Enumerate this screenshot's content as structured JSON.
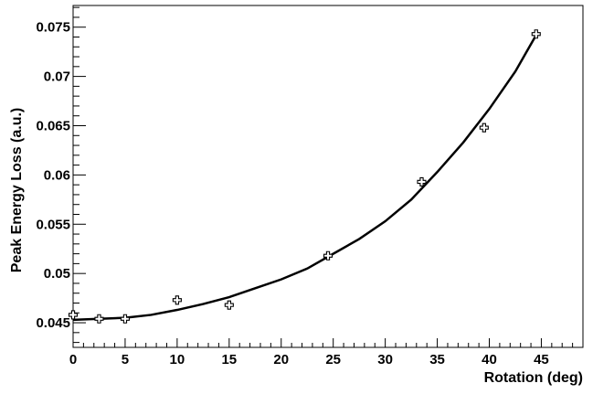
{
  "chart_data": {
    "type": "scatter",
    "title": "",
    "xlabel": "Rotation (deg)",
    "ylabel": "Peak Energy Loss (a.u.)",
    "xlim": [
      0,
      49
    ],
    "ylim": [
      0.0425,
      0.0772
    ],
    "x_ticks": [
      0,
      5,
      10,
      15,
      20,
      25,
      30,
      35,
      40,
      45
    ],
    "x_tick_labels": [
      "0",
      "5",
      "10",
      "15",
      "20",
      "25",
      "30",
      "35",
      "40",
      "45"
    ],
    "y_ticks": [
      0.045,
      0.05,
      0.055,
      0.06,
      0.065,
      0.07,
      0.075
    ],
    "y_tick_labels": [
      "0.045",
      "0.05",
      "0.055",
      "0.06",
      "0.065",
      "0.07",
      "0.075"
    ],
    "grid": false,
    "series": [
      {
        "marker": "open-cross",
        "x": [
          0,
          2.5,
          5,
          10,
          15,
          24.5,
          33.5,
          39.5,
          44.5
        ],
        "y": [
          0.0458,
          0.0454,
          0.0454,
          0.0473,
          0.0468,
          0.0518,
          0.0593,
          0.0648,
          0.0743
        ]
      }
    ],
    "fit_curve": {
      "x": [
        0,
        2.5,
        5,
        7.5,
        10,
        12.5,
        15,
        17.5,
        20,
        22.5,
        25,
        27.5,
        30,
        32.5,
        35,
        37.5,
        40,
        42.5,
        44.5
      ],
      "y": [
        0.0453,
        0.0454,
        0.0455,
        0.0458,
        0.0463,
        0.0469,
        0.0476,
        0.0485,
        0.0494,
        0.0505,
        0.052,
        0.0535,
        0.0553,
        0.0575,
        0.0603,
        0.0633,
        0.0667,
        0.0705,
        0.0742
      ]
    },
    "colors": {
      "marker": "#000000",
      "curve": "#000000",
      "frame": "#000000"
    }
  }
}
